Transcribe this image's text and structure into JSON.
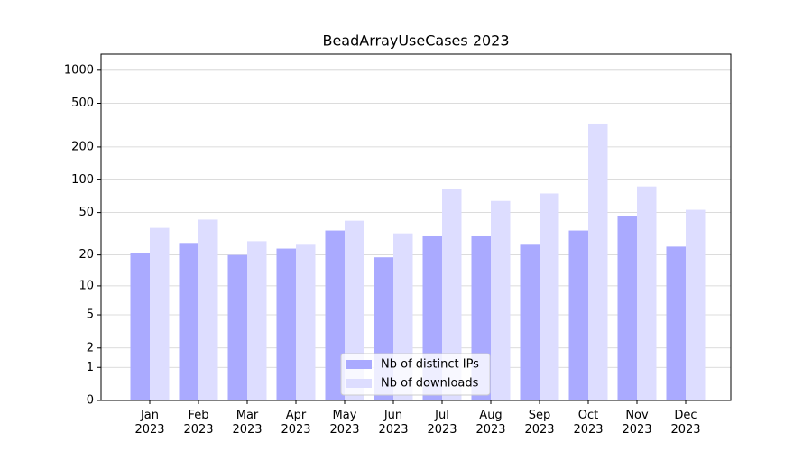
{
  "chart_data": {
    "type": "bar",
    "title": "BeadArrayUseCases 2023",
    "categories": [
      "Jan 2023",
      "Feb 2023",
      "Mar 2023",
      "Apr 2023",
      "May 2023",
      "Jun 2023",
      "Jul 2023",
      "Aug 2023",
      "Sep 2023",
      "Oct 2023",
      "Nov 2023",
      "Dec 2023"
    ],
    "series": [
      {
        "name": "Nb of distinct IPs",
        "color": "#aaaaff",
        "values": [
          21,
          26,
          20,
          23,
          34,
          19,
          30,
          30,
          25,
          34,
          46,
          24
        ]
      },
      {
        "name": "Nb of downloads",
        "color": "#ddddff",
        "values": [
          36,
          43,
          27,
          25,
          42,
          32,
          82,
          64,
          75,
          327,
          87,
          53
        ]
      }
    ],
    "ylim": [
      0,
      1400
    ],
    "yticks": [
      0,
      1,
      2,
      5,
      10,
      20,
      50,
      100,
      200,
      500,
      1000
    ],
    "log_scale": true,
    "grid": true,
    "legend": "lower center"
  }
}
